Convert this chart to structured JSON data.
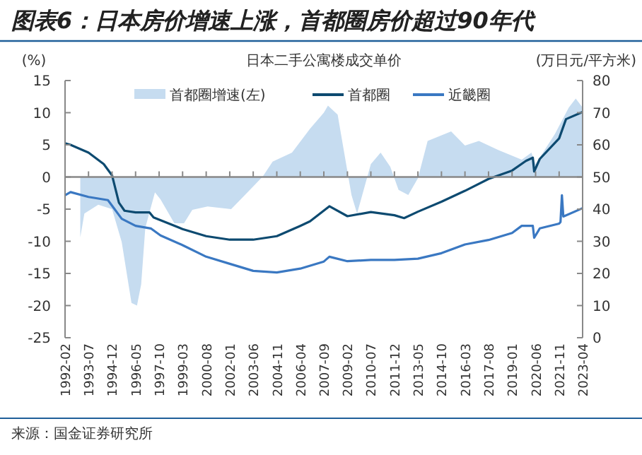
{
  "chart_data": {
    "type": "line",
    "title": "图表6：日本房价增速上涨，首都圈房价超过90年代",
    "subtitle": "日本二手公寓楼成交单价",
    "ylabel": "(%)",
    "y2label": "(万日元/平方米)",
    "annotations": [
      "来源：国金证券研究所"
    ],
    "legend": "top",
    "xlim": [
      "1992-02",
      "2023-04"
    ],
    "xticks": [
      "1992-02",
      "1993-07",
      "1994-12",
      "1996-05",
      "1997-10",
      "1999-03",
      "2000-08",
      "2002-01",
      "2003-06",
      "2004-11",
      "2006-04",
      "2007-09",
      "2009-02",
      "2010-07",
      "2011-12",
      "2013-05",
      "2014-10",
      "2016-03",
      "2017-08",
      "2019-01",
      "2020-06",
      "2021-11",
      "2023-04"
    ],
    "ylim": [
      -25,
      15
    ],
    "yticks": [
      -25,
      -20,
      -15,
      -10,
      -5,
      0,
      5,
      10,
      15
    ],
    "y2lim": [
      0,
      80
    ],
    "y2ticks": [
      0,
      10,
      20,
      30,
      40,
      50,
      60,
      70,
      80
    ],
    "series": [
      {
        "name": "首都圈增速(左)",
        "type": "area",
        "color": "#c6dcf0",
        "x": [
          "1993-01",
          "1993-04",
          "1994-02",
          "1994-12",
          "1995-07",
          "1996-02",
          "1996-06",
          "1996-09",
          "1996-12",
          "1997-07",
          "1997-11",
          "1998-09",
          "1999-04",
          "1999-10",
          "2000-09",
          "2002-02",
          "2002-12",
          "2004-01",
          "2004-08",
          "2005-10",
          "2006-11",
          "2007-09",
          "2007-12",
          "2008-07",
          "2009-05",
          "2009-09",
          "2010-07",
          "2011-02",
          "2011-09",
          "2012-03",
          "2012-10",
          "2013-05",
          "2013-12",
          "2015-05",
          "2016-03",
          "2017-01",
          "2018-03",
          "2019-08",
          "2020-03",
          "2020-06",
          "2021-08",
          "2022-06",
          "2022-11",
          "2023-04"
        ],
        "values": [
          -9.4,
          -5.7,
          -4.3,
          -5,
          -10.1,
          -19.6,
          -20,
          -16.7,
          -7.9,
          -2.4,
          -3.5,
          -7.2,
          -7.2,
          -5.1,
          -4.6,
          -5,
          -2.8,
          0.1,
          2.4,
          3.8,
          7.5,
          10,
          11.1,
          9.7,
          -2.8,
          -5.7,
          2,
          3.8,
          1.6,
          -2,
          -2.8,
          -0.2,
          5.6,
          7.1,
          4.9,
          5.6,
          4.2,
          2.7,
          3.8,
          2,
          6.7,
          10.8,
          12.2,
          10.8
        ]
      },
      {
        "name": "首都圈",
        "axis": "y2",
        "color": "#0d4a70",
        "x": [
          "1992-02",
          "1992-06",
          "1993-07",
          "1994-06",
          "1994-12",
          "1995-05",
          "1995-09",
          "1996-05",
          "1997-03",
          "1997-06",
          "1999-03",
          "2000-08",
          "2002-01",
          "2003-06",
          "2004-11",
          "2006-04",
          "2006-11",
          "2008-01",
          "2009-02",
          "2010-07",
          "2011-12",
          "2012-07",
          "2013-05",
          "2014-10",
          "2016-03",
          "2017-08",
          "2019-01",
          "2019-11",
          "2020-04",
          "2020-05",
          "2020-09",
          "2021-11",
          "2022-04",
          "2023-04"
        ],
        "values": [
          60.5,
          60,
          57.6,
          54,
          50.5,
          42,
          39.5,
          39,
          39,
          37.4,
          33.8,
          31.6,
          30.5,
          30.5,
          31.6,
          34.8,
          36.2,
          40.9,
          37.8,
          39.1,
          38.1,
          37.2,
          39.2,
          42.3,
          45.7,
          49.4,
          52,
          55,
          56,
          51.7,
          55.6,
          62,
          68,
          70.2
        ]
      },
      {
        "name": "近畿圈",
        "axis": "y2",
        "color": "#3a78c2",
        "x": [
          "1992-02",
          "1992-06",
          "1993-07",
          "1994-09",
          "1995-07",
          "1996-05",
          "1997-04",
          "1997-11",
          "1999-03",
          "2000-08",
          "2002-01",
          "2003-06",
          "2004-11",
          "2006-04",
          "2007-09",
          "2008-01",
          "2009-02",
          "2010-07",
          "2011-12",
          "2013-05",
          "2014-10",
          "2016-03",
          "2017-08",
          "2019-01",
          "2019-08",
          "2020-04",
          "2020-05",
          "2020-09",
          "2021-11",
          "2021-12",
          "2022-01",
          "2022-02",
          "2023-04"
        ],
        "values": [
          44.3,
          45.3,
          43.8,
          42.8,
          37,
          34.8,
          34,
          31.8,
          28.8,
          25.2,
          23,
          20.8,
          20.3,
          21.5,
          23.7,
          25.2,
          23.8,
          24.2,
          24.2,
          24.6,
          26.3,
          29,
          30.4,
          32.6,
          34.8,
          34.8,
          31.1,
          34,
          35.5,
          36,
          44.3,
          37.7,
          40.3
        ]
      }
    ]
  }
}
